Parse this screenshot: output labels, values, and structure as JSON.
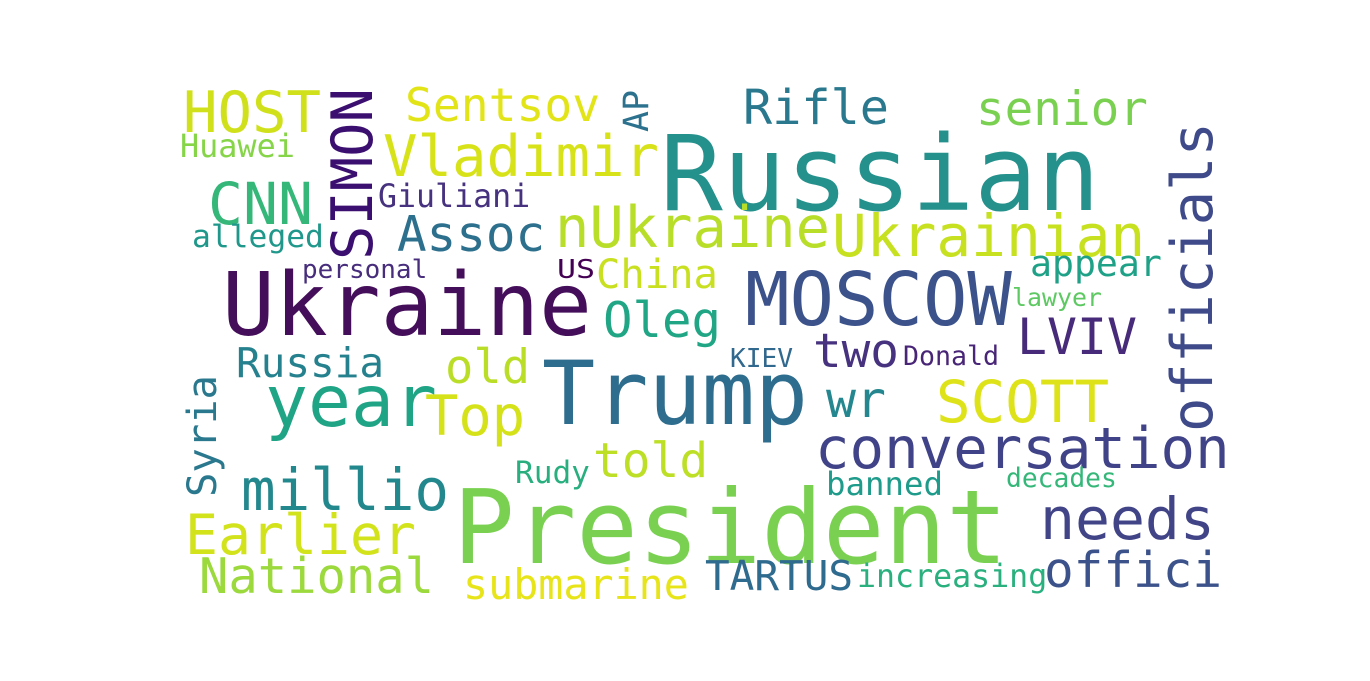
{
  "words": [
    {
      "text": "Russian",
      "color": "#25918c"
    },
    {
      "text": "Ukraine",
      "color": "#440e5a"
    },
    {
      "text": "President",
      "color": "#7ad151"
    },
    {
      "text": "Trump",
      "color": "#2e6d8e"
    },
    {
      "text": "MOSCOW",
      "color": "#3b528b"
    },
    {
      "text": "year",
      "color": "#20a486"
    },
    {
      "text": "officials",
      "color": "#3e4a89"
    },
    {
      "text": "conversation",
      "color": "#404387"
    },
    {
      "text": "Vladimir",
      "color": "#d8e219"
    },
    {
      "text": "nUkraine",
      "color": "#b8de29"
    },
    {
      "text": "Ukrainian",
      "color": "#c7e020"
    },
    {
      "text": "SIMON",
      "color": "#3b0f70"
    },
    {
      "text": "HOST",
      "color": "#d0e11c"
    },
    {
      "text": "CNN",
      "color": "#35b779"
    },
    {
      "text": "Sentsov",
      "color": "#e2e418"
    },
    {
      "text": "AP",
      "color": "#2c728e"
    },
    {
      "text": "Rifle",
      "color": "#2a788e"
    },
    {
      "text": "senior",
      "color": "#7ad151"
    },
    {
      "text": "Huawei",
      "color": "#86d549"
    },
    {
      "text": "Giuliani",
      "color": "#46327e"
    },
    {
      "text": "Assoc",
      "color": "#2d708e"
    },
    {
      "text": "alleged",
      "color": "#1f988b"
    },
    {
      "text": "personal",
      "color": "#472d7b"
    },
    {
      "text": "US",
      "color": "#440154"
    },
    {
      "text": "China",
      "color": "#c8e020"
    },
    {
      "text": "appear",
      "color": "#1fa187"
    },
    {
      "text": "lawyer",
      "color": "#5ec962"
    },
    {
      "text": "Oleg",
      "color": "#21a685"
    },
    {
      "text": "LVIV",
      "color": "#472a7a"
    },
    {
      "text": "two",
      "color": "#46327e"
    },
    {
      "text": "Russia",
      "color": "#26818e"
    },
    {
      "text": "old",
      "color": "#bade28"
    },
    {
      "text": "KIEV",
      "color": "#31688e"
    },
    {
      "text": "Donald",
      "color": "#482576"
    },
    {
      "text": "Top",
      "color": "#d5e21a"
    },
    {
      "text": "SCOTT",
      "color": "#dde318"
    },
    {
      "text": "wr",
      "color": "#24868e"
    },
    {
      "text": "Syria",
      "color": "#2a788e"
    },
    {
      "text": "told",
      "color": "#bddf26"
    },
    {
      "text": "millio",
      "color": "#23888e"
    },
    {
      "text": "Rudy",
      "color": "#29af7f"
    },
    {
      "text": "banned",
      "color": "#1e9b8a"
    },
    {
      "text": "decades",
      "color": "#35b779"
    },
    {
      "text": "needs",
      "color": "#414487"
    },
    {
      "text": "Earlier",
      "color": "#d2e21b"
    },
    {
      "text": "National",
      "color": "#9bd93c"
    },
    {
      "text": "submarine",
      "color": "#e7e419"
    },
    {
      "text": "TARTUS",
      "color": "#2f6b8e"
    },
    {
      "text": "increasing",
      "color": "#2ab07f"
    },
    {
      "text": "offici",
      "color": "#3b528b"
    }
  ]
}
